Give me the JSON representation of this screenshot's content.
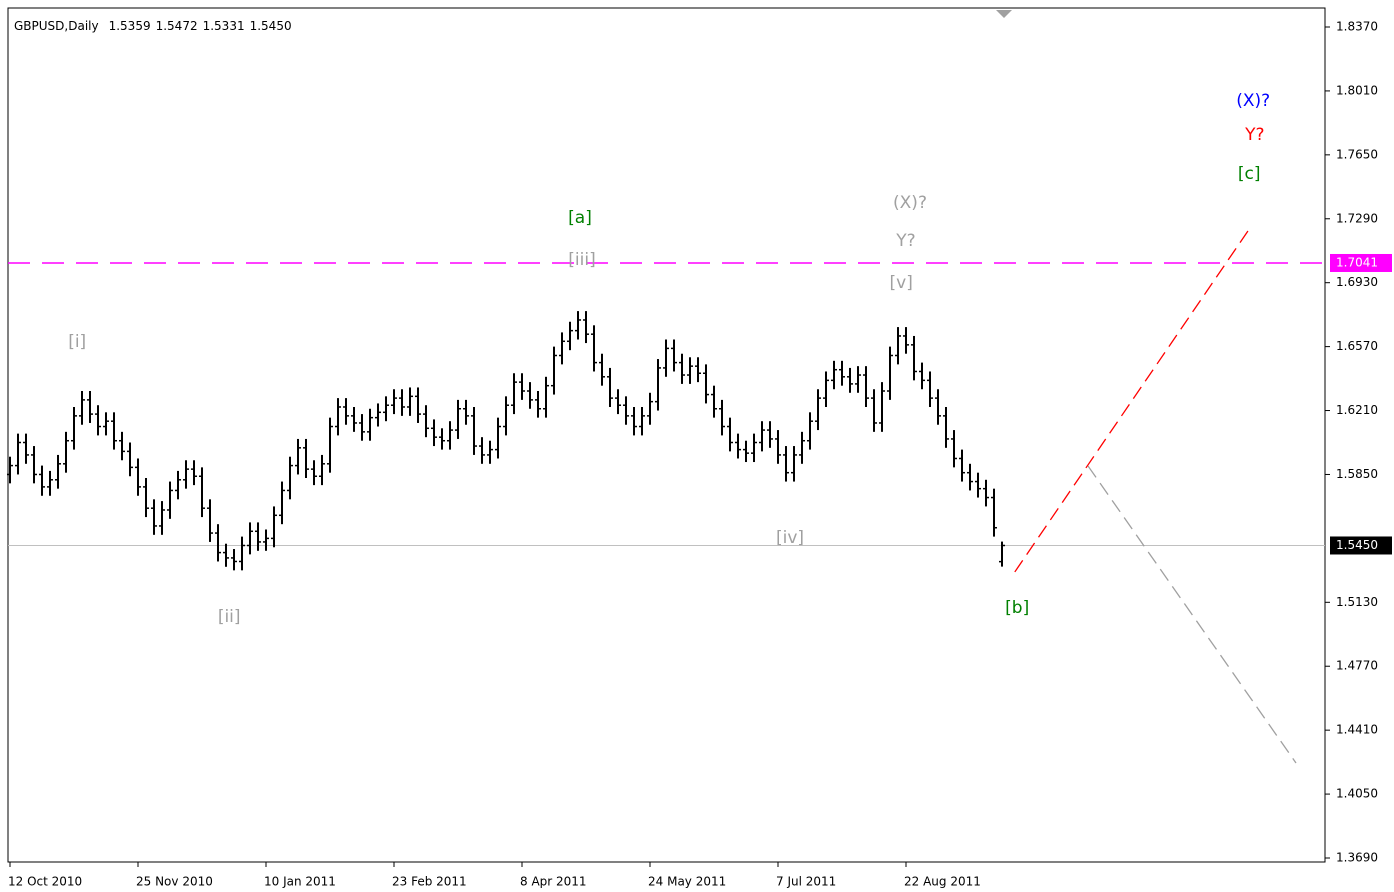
{
  "chart_data": {
    "type": "ohlc",
    "title": "GBPUSD,Daily",
    "last_bar_labels": [
      "1.5359",
      "1.5472",
      "1.5331",
      "1.5450"
    ],
    "bar_color": "#000000",
    "fractal_color": "#a0a0a0",
    "xlim": [
      -0.25,
      164.4
    ],
    "ylim": [
      1.369,
      1.837
    ],
    "xticks": [
      {
        "value": 0,
        "label": "12 Oct 2010"
      },
      {
        "value": 16,
        "label": "25 Nov 2010"
      },
      {
        "value": 32,
        "label": "10 Jan 2011"
      },
      {
        "value": 48,
        "label": "23 Feb 2011"
      },
      {
        "value": 64,
        "label": "8 Apr 2011"
      },
      {
        "value": 80,
        "label": "24 May 2011"
      },
      {
        "value": 96,
        "label": "7 Jul 2011"
      },
      {
        "value": 112,
        "label": "22 Aug 2011"
      }
    ],
    "yticks": [
      {
        "value": 1.837,
        "label": "1.8370"
      },
      {
        "value": 1.801,
        "label": "1.8010"
      },
      {
        "value": 1.765,
        "label": "1.7650"
      },
      {
        "value": 1.729,
        "label": "1.7290"
      },
      {
        "value": 1.693,
        "label": "1.6930"
      },
      {
        "value": 1.657,
        "label": "1.6570"
      },
      {
        "value": 1.621,
        "label": "1.6210"
      },
      {
        "value": 1.585,
        "label": "1.5850"
      },
      {
        "value": 1.513,
        "label": "1.5130"
      },
      {
        "value": 1.477,
        "label": "1.4770"
      },
      {
        "value": 1.441,
        "label": "1.4410"
      },
      {
        "value": 1.405,
        "label": "1.4050"
      },
      {
        "value": 1.369,
        "label": "1.3690"
      }
    ],
    "bars": [
      [
        1.585,
        1.595,
        1.58,
        1.59
      ],
      [
        1.59,
        1.608,
        1.585,
        1.603
      ],
      [
        1.603,
        1.608,
        1.591,
        1.596
      ],
      [
        1.596,
        1.601,
        1.58,
        1.585
      ],
      [
        1.585,
        1.59,
        1.573,
        1.578
      ],
      [
        1.578,
        1.587,
        1.573,
        1.582
      ],
      [
        1.582,
        1.596,
        1.577,
        1.591
      ],
      [
        1.591,
        1.609,
        1.586,
        1.604
      ],
      [
        1.604,
        1.623,
        1.599,
        1.618
      ],
      [
        1.618,
        1.632,
        1.613,
        1.627
      ],
      [
        1.627,
        1.632,
        1.614,
        1.619
      ],
      [
        1.619,
        1.624,
        1.607,
        1.612
      ],
      [
        1.612,
        1.62,
        1.607,
        1.615
      ],
      [
        1.615,
        1.62,
        1.599,
        1.604
      ],
      [
        1.604,
        1.609,
        1.593,
        1.598
      ],
      [
        1.598,
        1.603,
        1.584,
        1.589
      ],
      [
        1.589,
        1.594,
        1.573,
        1.578
      ],
      [
        1.578,
        1.583,
        1.561,
        1.566
      ],
      [
        1.566,
        1.571,
        1.551,
        1.556
      ],
      [
        1.556,
        1.57,
        1.551,
        1.565
      ],
      [
        1.565,
        1.581,
        1.56,
        1.576
      ],
      [
        1.576,
        1.587,
        1.571,
        1.582
      ],
      [
        1.582,
        1.593,
        1.577,
        1.588
      ],
      [
        1.588,
        1.593,
        1.579,
        1.584
      ],
      [
        1.584,
        1.589,
        1.561,
        1.566
      ],
      [
        1.566,
        1.571,
        1.547,
        1.552
      ],
      [
        1.552,
        1.557,
        1.536,
        1.541
      ],
      [
        1.541,
        1.546,
        1.533,
        1.538
      ],
      [
        1.538,
        1.543,
        1.531,
        1.536
      ],
      [
        1.536,
        1.55,
        1.531,
        1.545
      ],
      [
        1.545,
        1.558,
        1.54,
        1.553
      ],
      [
        1.553,
        1.558,
        1.542,
        1.547
      ],
      [
        1.547,
        1.554,
        1.542,
        1.549
      ],
      [
        1.549,
        1.567,
        1.544,
        1.562
      ],
      [
        1.562,
        1.581,
        1.557,
        1.576
      ],
      [
        1.576,
        1.595,
        1.571,
        1.59
      ],
      [
        1.59,
        1.605,
        1.585,
        1.6
      ],
      [
        1.6,
        1.605,
        1.583,
        1.588
      ],
      [
        1.588,
        1.593,
        1.579,
        1.584
      ],
      [
        1.584,
        1.596,
        1.579,
        1.591
      ],
      [
        1.591,
        1.617,
        1.586,
        1.612
      ],
      [
        1.612,
        1.628,
        1.607,
        1.623
      ],
      [
        1.623,
        1.628,
        1.613,
        1.618
      ],
      [
        1.618,
        1.623,
        1.609,
        1.614
      ],
      [
        1.614,
        1.619,
        1.604,
        1.609
      ],
      [
        1.609,
        1.622,
        1.604,
        1.617
      ],
      [
        1.617,
        1.625,
        1.612,
        1.62
      ],
      [
        1.62,
        1.629,
        1.615,
        1.624
      ],
      [
        1.624,
        1.633,
        1.619,
        1.628
      ],
      [
        1.628,
        1.633,
        1.618,
        1.623
      ],
      [
        1.623,
        1.634,
        1.618,
        1.629
      ],
      [
        1.629,
        1.634,
        1.614,
        1.619
      ],
      [
        1.619,
        1.624,
        1.606,
        1.611
      ],
      [
        1.611,
        1.616,
        1.601,
        1.606
      ],
      [
        1.606,
        1.611,
        1.599,
        1.604
      ],
      [
        1.604,
        1.615,
        1.599,
        1.61
      ],
      [
        1.61,
        1.627,
        1.605,
        1.622
      ],
      [
        1.622,
        1.627,
        1.613,
        1.618
      ],
      [
        1.618,
        1.623,
        1.596,
        1.601
      ],
      [
        1.601,
        1.606,
        1.591,
        1.596
      ],
      [
        1.596,
        1.604,
        1.591,
        1.599
      ],
      [
        1.599,
        1.617,
        1.594,
        1.612
      ],
      [
        1.612,
        1.629,
        1.607,
        1.624
      ],
      [
        1.624,
        1.642,
        1.619,
        1.637
      ],
      [
        1.637,
        1.642,
        1.627,
        1.632
      ],
      [
        1.632,
        1.637,
        1.622,
        1.627
      ],
      [
        1.627,
        1.632,
        1.617,
        1.622
      ],
      [
        1.622,
        1.64,
        1.617,
        1.635
      ],
      [
        1.635,
        1.657,
        1.63,
        1.652
      ],
      [
        1.652,
        1.665,
        1.647,
        1.66
      ],
      [
        1.66,
        1.671,
        1.655,
        1.666
      ],
      [
        1.666,
        1.677,
        1.661,
        1.672
      ],
      [
        1.672,
        1.677,
        1.659,
        1.664
      ],
      [
        1.664,
        1.669,
        1.643,
        1.648
      ],
      [
        1.648,
        1.653,
        1.635,
        1.64
      ],
      [
        1.64,
        1.645,
        1.623,
        1.628
      ],
      [
        1.628,
        1.633,
        1.619,
        1.624
      ],
      [
        1.624,
        1.629,
        1.613,
        1.618
      ],
      [
        1.618,
        1.623,
        1.607,
        1.612
      ],
      [
        1.612,
        1.623,
        1.607,
        1.618
      ],
      [
        1.618,
        1.631,
        1.613,
        1.626
      ],
      [
        1.626,
        1.65,
        1.621,
        1.645
      ],
      [
        1.645,
        1.661,
        1.64,
        1.656
      ],
      [
        1.656,
        1.661,
        1.643,
        1.648
      ],
      [
        1.648,
        1.653,
        1.636,
        1.641
      ],
      [
        1.641,
        1.651,
        1.636,
        1.646
      ],
      [
        1.646,
        1.651,
        1.637,
        1.642
      ],
      [
        1.642,
        1.647,
        1.625,
        1.63
      ],
      [
        1.63,
        1.635,
        1.617,
        1.622
      ],
      [
        1.622,
        1.627,
        1.607,
        1.612
      ],
      [
        1.612,
        1.617,
        1.598,
        1.603
      ],
      [
        1.603,
        1.608,
        1.594,
        1.599
      ],
      [
        1.599,
        1.604,
        1.592,
        1.597
      ],
      [
        1.597,
        1.608,
        1.592,
        1.603
      ],
      [
        1.603,
        1.615,
        1.598,
        1.61
      ],
      [
        1.61,
        1.615,
        1.6,
        1.605
      ],
      [
        1.605,
        1.61,
        1.591,
        1.596
      ],
      [
        1.596,
        1.601,
        1.581,
        1.586
      ],
      [
        1.586,
        1.601,
        1.581,
        1.596
      ],
      [
        1.596,
        1.609,
        1.591,
        1.604
      ],
      [
        1.604,
        1.62,
        1.599,
        1.615
      ],
      [
        1.615,
        1.633,
        1.61,
        1.628
      ],
      [
        1.628,
        1.643,
        1.623,
        1.638
      ],
      [
        1.638,
        1.649,
        1.633,
        1.644
      ],
      [
        1.644,
        1.649,
        1.635,
        1.64
      ],
      [
        1.64,
        1.645,
        1.631,
        1.636
      ],
      [
        1.636,
        1.646,
        1.631,
        1.641
      ],
      [
        1.641,
        1.646,
        1.623,
        1.628
      ],
      [
        1.628,
        1.633,
        1.609,
        1.614
      ],
      [
        1.614,
        1.637,
        1.609,
        1.632
      ],
      [
        1.632,
        1.657,
        1.627,
        1.652
      ],
      [
        1.652,
        1.668,
        1.647,
        1.663
      ],
      [
        1.663,
        1.668,
        1.653,
        1.658
      ],
      [
        1.658,
        1.663,
        1.638,
        1.643
      ],
      [
        1.643,
        1.648,
        1.633,
        1.638
      ],
      [
        1.638,
        1.643,
        1.623,
        1.628
      ],
      [
        1.628,
        1.633,
        1.613,
        1.618
      ],
      [
        1.618,
        1.623,
        1.6,
        1.605
      ],
      [
        1.605,
        1.61,
        1.589,
        1.594
      ],
      [
        1.594,
        1.599,
        1.581,
        1.586
      ],
      [
        1.586,
        1.591,
        1.576,
        1.581
      ],
      [
        1.581,
        1.586,
        1.572,
        1.577
      ],
      [
        1.577,
        1.582,
        1.567,
        1.572
      ],
      [
        1.572,
        1.577,
        1.55,
        1.555
      ],
      [
        1.5359,
        1.5472,
        1.5331,
        1.545
      ]
    ],
    "levels": [
      {
        "value": 1.7041,
        "color": "#ff00ff"
      }
    ],
    "trend_lines": [
      {
        "x": [
          125.6,
          155
        ],
        "y": [
          1.5301,
          1.7238
        ],
        "color": "#ff0000"
      },
      {
        "x": [
          134.75,
          160.75
        ],
        "y": [
          1.5898,
          1.4225
        ],
        "color": "#a0a0a0"
      }
    ],
    "annotations": [
      {
        "text": "[i]",
        "x": 8.4,
        "y": 1.6596,
        "color": "#a0a0a0"
      },
      {
        "text": "[ii]",
        "x": 27.4,
        "y": 1.5047,
        "color": "#a0a0a0"
      },
      {
        "text": "[iii]",
        "x": 71.5,
        "y": 1.7058,
        "color": "#a0a0a0"
      },
      {
        "text": "[a]",
        "x": 71.25,
        "y": 1.7294,
        "color": "#008000"
      },
      {
        "text": "[iv]",
        "x": 97.5,
        "y": 1.5492,
        "color": "#a0a0a0"
      },
      {
        "text": "[v]",
        "x": 111.4,
        "y": 1.6928,
        "color": "#a0a0a0"
      },
      {
        "text": "Y?",
        "x": 112,
        "y": 1.7165,
        "color": "#a0a0a0"
      },
      {
        "text": "(X)?",
        "x": 112.5,
        "y": 1.7379,
        "color": "#a0a0a0"
      },
      {
        "text": "[b]",
        "x": 125.9,
        "y": 1.5098,
        "color": "#008000"
      },
      {
        "text": "[c]",
        "x": 154.9,
        "y": 1.7542,
        "color": "#008000"
      },
      {
        "text": "Y?",
        "x": 155.6,
        "y": 1.7762,
        "color": "#ff0000"
      },
      {
        "text": "(X)?",
        "x": 155.4,
        "y": 1.7953,
        "color": "#0000ff"
      }
    ]
  }
}
